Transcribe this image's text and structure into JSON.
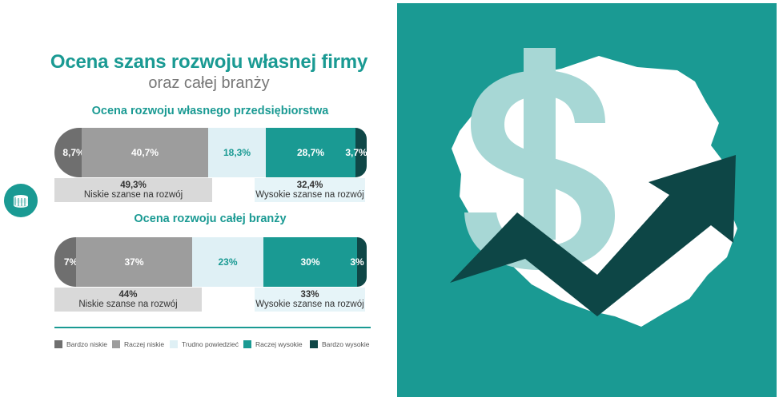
{
  "title": "Ocena szans rozwoju własnej firmy",
  "subtitle": "oraz całej branży",
  "colors": {
    "teal": "#1a9a93",
    "bardzo_niskie": "#6f6f6f",
    "raczej_niskie": "#9d9d9d",
    "trudno": "#dff0f5",
    "raczej_wysokie": "#1a9a93",
    "bardzo_wysokie": "#0f4747",
    "map": "#ffffff",
    "dollar": "#a7d7d5",
    "arrow": "#0d4646"
  },
  "icons": {
    "badge": "coins-icon",
    "illustration": "poland-map-dollar-growth-arrow-illustration"
  },
  "chart_data": [
    {
      "type": "bar",
      "stacked": true,
      "title": "Ocena rozwoju własnego przedsiębiorstwa",
      "categories": [
        "Bardzo niskie",
        "Raczej niskie",
        "Trudno powiedzieć",
        "Raczej wysokie",
        "Bardzo wysokie"
      ],
      "values": [
        8.7,
        40.7,
        18.3,
        28.7,
        3.7
      ],
      "labels": [
        "8,7%",
        "40,7%",
        "18,3%",
        "28,7%",
        "3,7%"
      ],
      "summary": {
        "low_value": "49,3%",
        "low_label": "Niskie szanse na rozwój",
        "high_value": "32,4%",
        "high_label": "Wysokie szanse na rozwój"
      }
    },
    {
      "type": "bar",
      "stacked": true,
      "title": "Ocena rozwoju całej branży",
      "categories": [
        "Bardzo niskie",
        "Raczej niskie",
        "Trudno powiedzieć",
        "Raczej wysokie",
        "Bardzo wysokie"
      ],
      "values": [
        7,
        37,
        23,
        30,
        3
      ],
      "labels": [
        "7%",
        "37%",
        "23%",
        "30%",
        "3%"
      ],
      "summary": {
        "low_value": "44%",
        "low_label": "Niskie szanse na rozwój",
        "high_value": "33%",
        "high_label": "Wysokie szanse na rozwój"
      }
    }
  ],
  "legend": [
    "Bardzo niskie",
    "Raczej niskie",
    "Trudno powiedzieć",
    "Raczej wysokie",
    "Bardzo wysokie"
  ]
}
